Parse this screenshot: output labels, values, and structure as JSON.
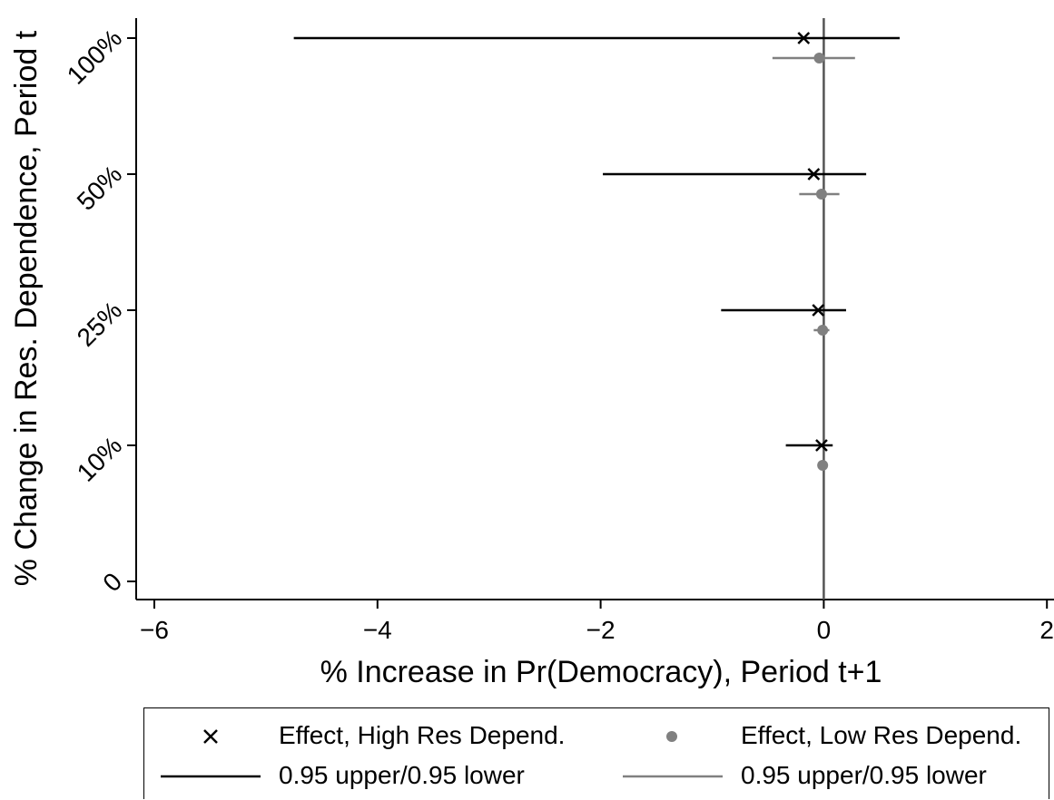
{
  "chart_data": {
    "type": "scatter",
    "orientation": "horizontal-coefficient-plot",
    "xlabel": "% Increase in Pr(Democracy), Period t+1",
    "ylabel": "% Change in Res. Dependence, Period t",
    "xlim": [
      -6.1,
      2.1
    ],
    "x_ticks": [
      -6,
      -4,
      -2,
      0,
      2
    ],
    "x_tick_labels": [
      "−6",
      "−4",
      "−2",
      "0",
      "2"
    ],
    "y_ticks": [
      0,
      10,
      25,
      50,
      100
    ],
    "y_tick_labels": [
      "0",
      "10%",
      "25%",
      "50%",
      "100%"
    ],
    "reference_line_x": 0,
    "grid": false,
    "legend_position": "bottom",
    "series": [
      {
        "name": "Effect, High Res Depend.",
        "marker": "x",
        "color": "#000000",
        "ci_label": "0.95 upper/0.95 lower",
        "points": [
          {
            "level": "100%",
            "estimate": -0.18,
            "lower": -4.75,
            "upper": 0.68
          },
          {
            "level": "50%",
            "estimate": -0.09,
            "lower": -1.98,
            "upper": 0.38
          },
          {
            "level": "25%",
            "estimate": -0.05,
            "lower": -0.92,
            "upper": 0.2
          },
          {
            "level": "10%",
            "estimate": -0.02,
            "lower": -0.34,
            "upper": 0.08
          }
        ]
      },
      {
        "name": "Effect, Low Res Depend.",
        "marker": "circle",
        "color": "#808080",
        "ci_label": "0.95 upper/0.95 lower",
        "points": [
          {
            "level": "100%",
            "estimate": -0.04,
            "lower": -0.46,
            "upper": 0.28
          },
          {
            "level": "50%",
            "estimate": -0.02,
            "lower": -0.22,
            "upper": 0.14
          },
          {
            "level": "25%",
            "estimate": -0.01,
            "lower": -0.09,
            "upper": 0.05
          },
          {
            "level": "10%",
            "estimate": -0.01,
            "lower": -0.03,
            "upper": 0.01
          }
        ]
      }
    ]
  }
}
